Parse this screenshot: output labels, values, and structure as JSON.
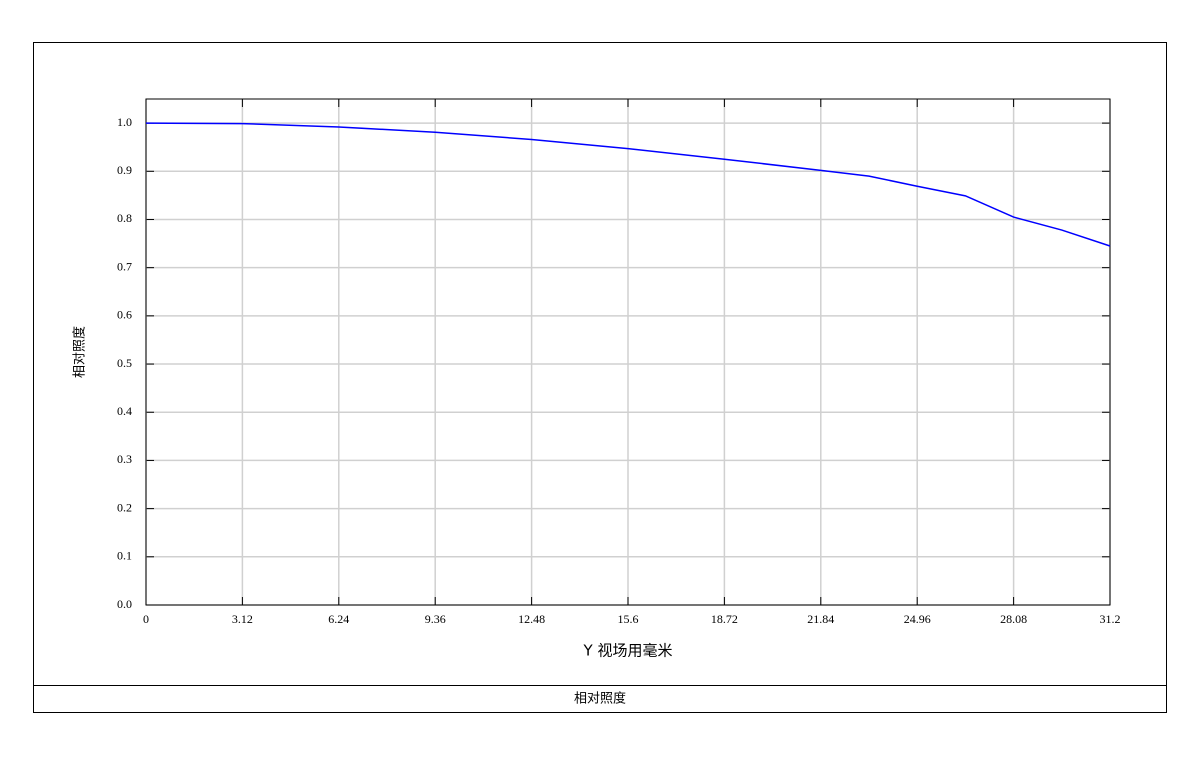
{
  "chart_data": {
    "type": "line",
    "xlabel": "Y 视场用毫米",
    "ylabel": "相对照度",
    "caption": "相对照度",
    "x": [
      0,
      3.12,
      6.24,
      9.36,
      12.48,
      15.6,
      18.72,
      21.84,
      23.4,
      24.96,
      26.52,
      28.08,
      29.64,
      31.2
    ],
    "series": [
      {
        "color": "#0000ff",
        "values": [
          1.0,
          0.999,
          0.992,
          0.981,
          0.966,
          0.947,
          0.925,
          0.902,
          0.89,
          0.869,
          0.849,
          0.805,
          0.778,
          0.745
        ]
      }
    ],
    "xlim": [
      0,
      31.2
    ],
    "ylim": [
      0,
      1.05
    ],
    "xticks": [
      0,
      3.12,
      6.24,
      9.36,
      12.48,
      15.6,
      18.72,
      21.84,
      24.96,
      28.08,
      31.2
    ],
    "yticks": [
      {
        "value": 0,
        "label": "0.0"
      },
      0.1,
      0.2,
      0.3,
      0.4,
      0.5,
      0.6,
      0.7,
      0.8,
      0.9,
      {
        "value": 1,
        "label": "1.0"
      }
    ],
    "grid": true
  }
}
